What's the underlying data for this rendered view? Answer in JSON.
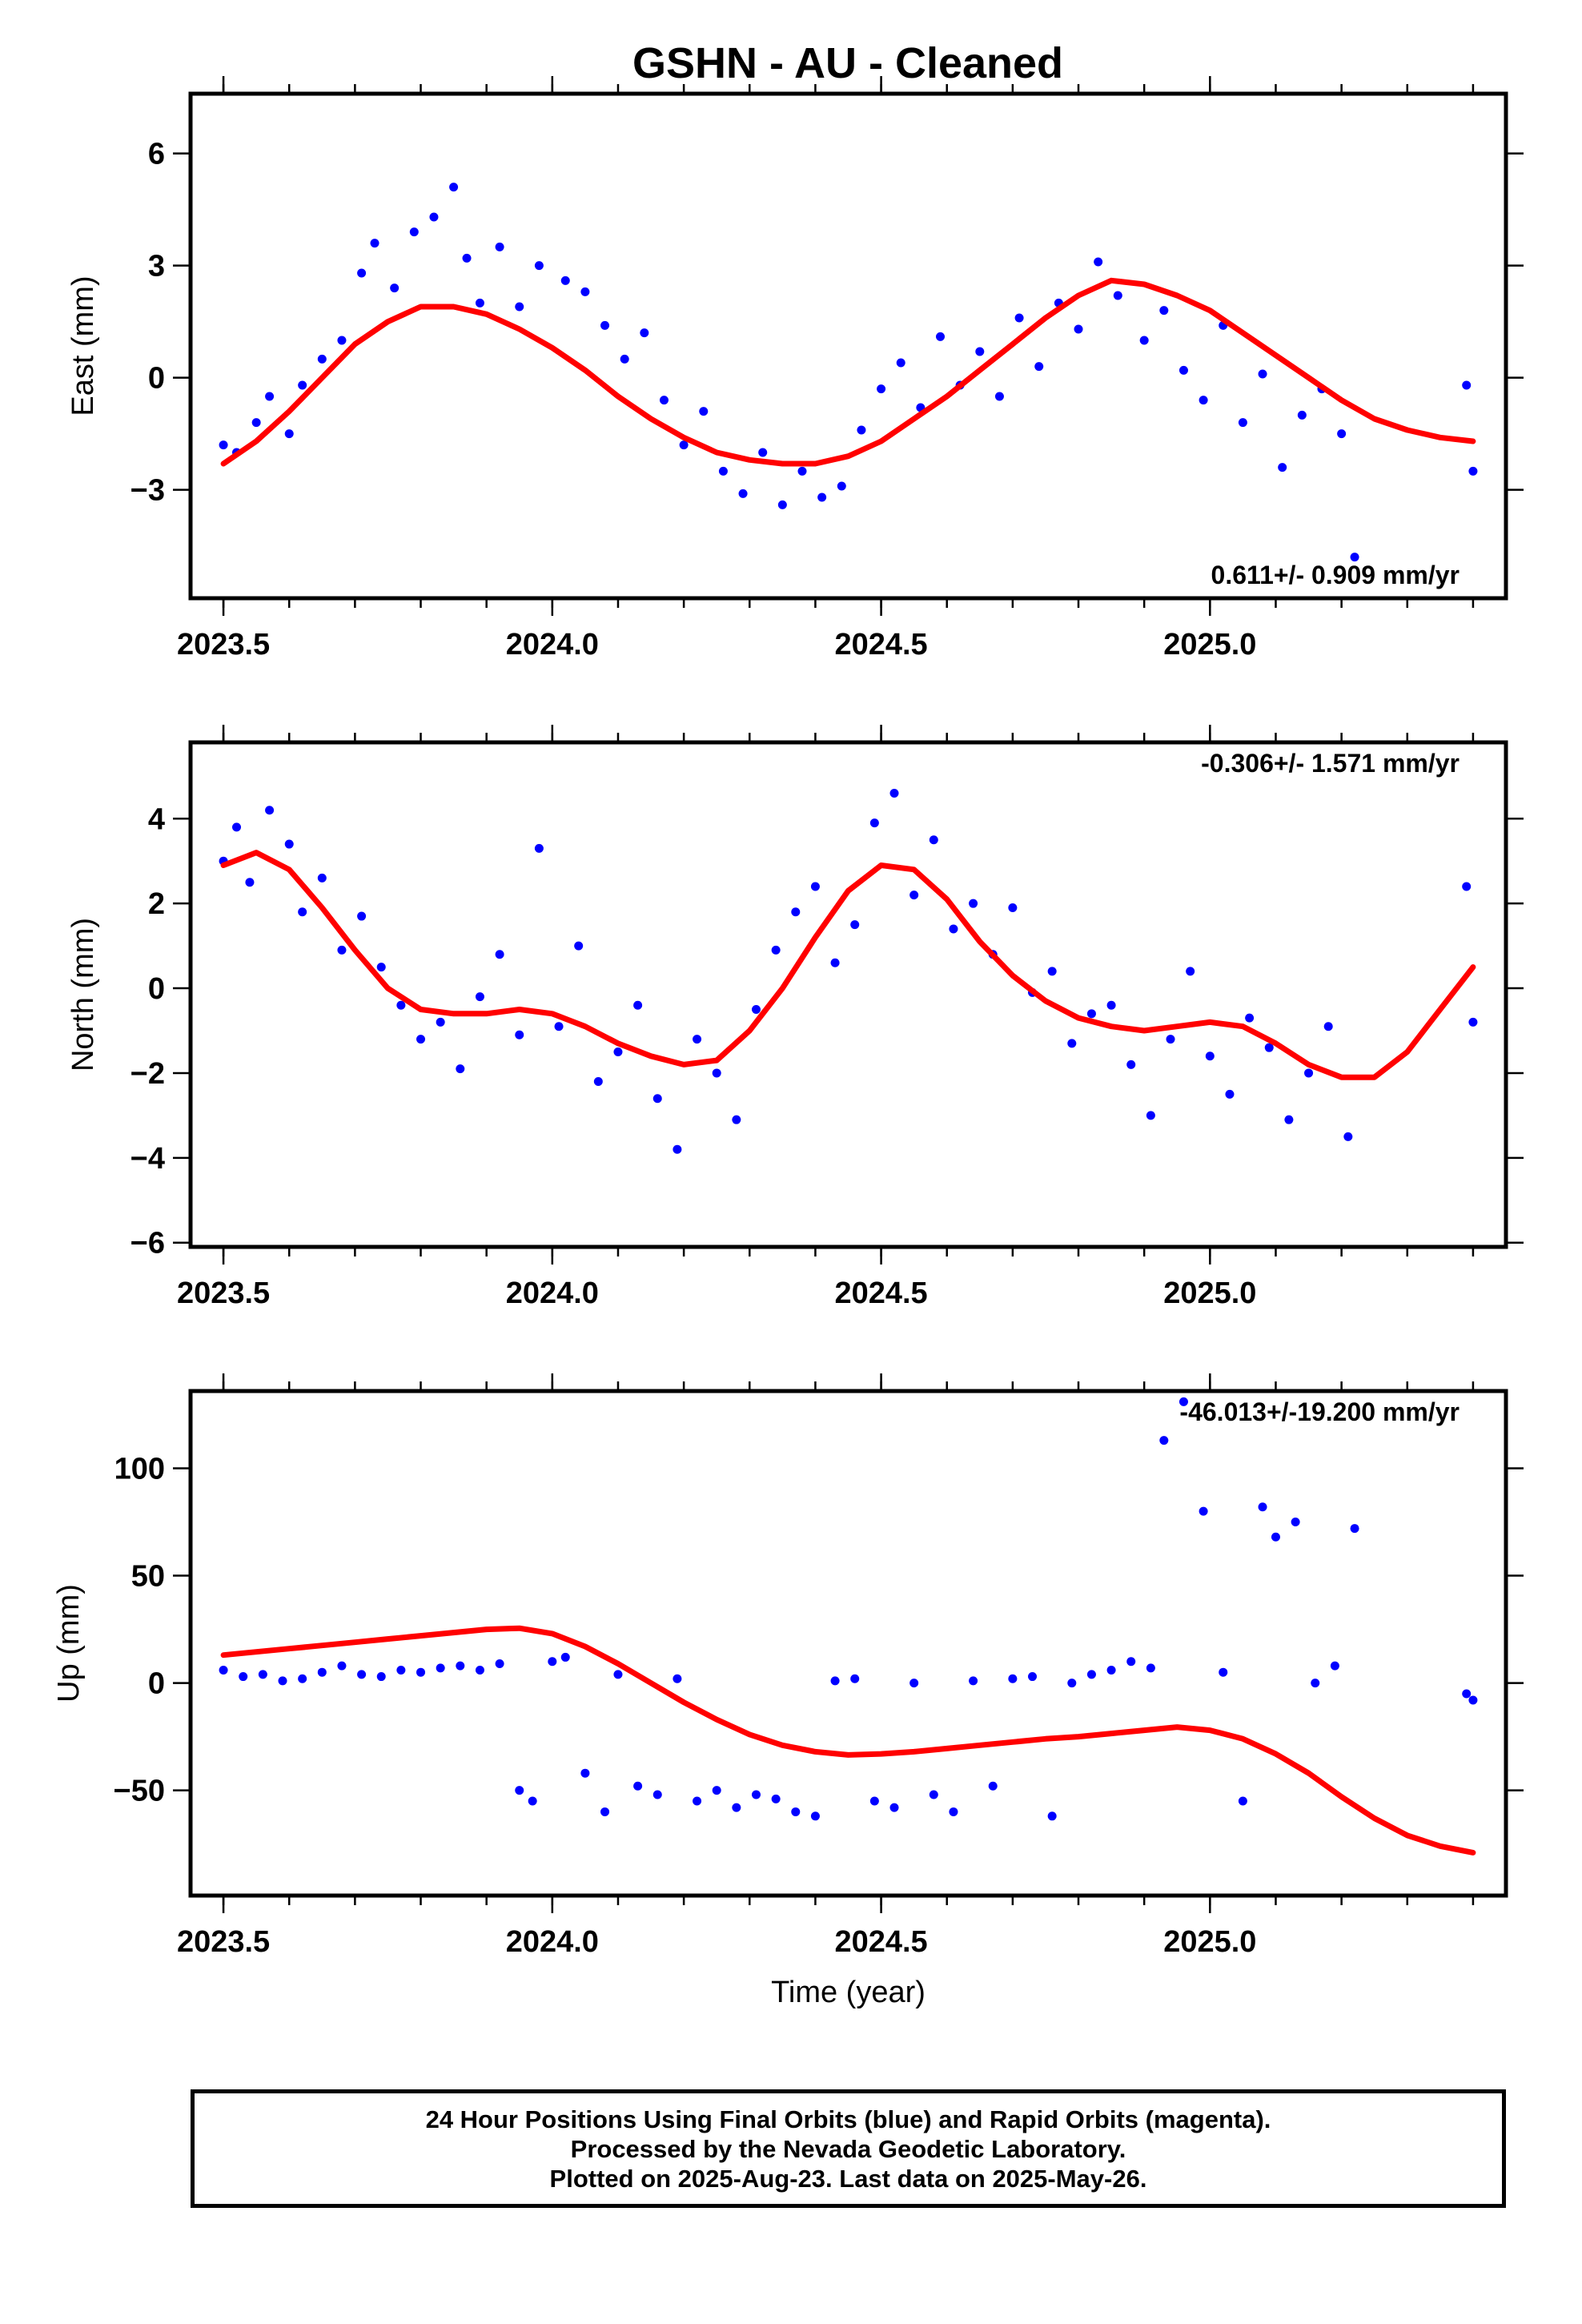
{
  "title": "GSHN  - AU - Cleaned",
  "footer": {
    "line1": "24 Hour Positions Using Final Orbits (blue) and Rapid Orbits (magenta).",
    "line2": "Processed by the Nevada Geodetic Laboratory.",
    "line3": "Plotted on 2025-Aug-23. Last data on 2025-May-26."
  },
  "colors": {
    "points": "#0000ff",
    "fit": "#ff0000",
    "axis": "#000000"
  },
  "chart_data": [
    {
      "type": "scatter",
      "ylabel": "East (mm)",
      "xlabel": "",
      "xlim": [
        2023.45,
        2025.45
      ],
      "ylim": [
        -5.9,
        7.6
      ],
      "xticks": [
        2023.5,
        2024.0,
        2024.5,
        2025.0
      ],
      "xtick_labels": [
        "2023.5",
        "2024.0",
        "2024.5",
        "2025.0"
      ],
      "yticks": [
        -3,
        0,
        3,
        6
      ],
      "ytick_labels": [
        "−3",
        "0",
        "3",
        "6"
      ],
      "rate_text": "0.611+/- 0.909 mm/yr",
      "rate_position": "bottom-right",
      "series": [
        {
          "type": "line",
          "x": [
            2023.5,
            2023.55,
            2023.6,
            2023.65,
            2023.7,
            2023.75,
            2023.8,
            2023.85,
            2023.9,
            2023.95,
            2024.0,
            2024.05,
            2024.1,
            2024.15,
            2024.2,
            2024.25,
            2024.3,
            2024.35,
            2024.4,
            2024.45,
            2024.5,
            2024.55,
            2024.6,
            2024.65,
            2024.7,
            2024.75,
            2024.8,
            2024.85,
            2024.9,
            2024.95,
            2025.0,
            2025.05,
            2025.1,
            2025.15,
            2025.2,
            2025.25,
            2025.3,
            2025.35,
            2025.4
          ],
          "y": [
            -2.3,
            -1.7,
            -0.9,
            0.0,
            0.9,
            1.5,
            1.9,
            1.9,
            1.7,
            1.3,
            0.8,
            0.2,
            -0.5,
            -1.1,
            -1.6,
            -2.0,
            -2.2,
            -2.3,
            -2.3,
            -2.1,
            -1.7,
            -1.1,
            -0.5,
            0.2,
            0.9,
            1.6,
            2.2,
            2.6,
            2.5,
            2.2,
            1.8,
            1.2,
            0.6,
            0.0,
            -0.6,
            -1.1,
            -1.4,
            -1.6,
            -1.7
          ]
        },
        {
          "type": "scatter",
          "x": [
            2023.5,
            2023.52,
            2023.55,
            2023.57,
            2023.6,
            2023.62,
            2023.65,
            2023.68,
            2023.71,
            2023.73,
            2023.76,
            2023.79,
            2023.82,
            2023.85,
            2023.87,
            2023.89,
            2023.92,
            2023.95,
            2023.98,
            2024.02,
            2024.05,
            2024.08,
            2024.11,
            2024.14,
            2024.17,
            2024.2,
            2024.23,
            2024.26,
            2024.29,
            2024.32,
            2024.35,
            2024.38,
            2024.41,
            2024.44,
            2024.47,
            2024.5,
            2024.53,
            2024.56,
            2024.59,
            2024.62,
            2024.65,
            2024.68,
            2024.71,
            2024.74,
            2024.77,
            2024.8,
            2024.83,
            2024.86,
            2024.9,
            2024.93,
            2024.96,
            2024.99,
            2025.02,
            2025.05,
            2025.08,
            2025.11,
            2025.14,
            2025.17,
            2025.2,
            2025.22,
            2025.39,
            2025.4
          ],
          "y": [
            -1.8,
            -2.0,
            -1.2,
            -0.5,
            -1.5,
            -0.2,
            0.5,
            1.0,
            2.8,
            3.6,
            2.4,
            3.9,
            4.3,
            5.1,
            3.2,
            2.0,
            3.5,
            1.9,
            3.0,
            2.6,
            2.3,
            1.4,
            0.5,
            1.2,
            -0.6,
            -1.8,
            -0.9,
            -2.5,
            -3.1,
            -2.0,
            -3.4,
            -2.5,
            -3.2,
            -2.9,
            -1.4,
            -0.3,
            0.4,
            -0.8,
            1.1,
            -0.2,
            0.7,
            -0.5,
            1.6,
            0.3,
            2.0,
            1.3,
            3.1,
            2.2,
            1.0,
            1.8,
            0.2,
            -0.6,
            1.4,
            -1.2,
            0.1,
            -2.4,
            -1.0,
            -0.3,
            -1.5,
            -4.8,
            -0.2,
            -2.5
          ]
        }
      ]
    },
    {
      "type": "scatter",
      "ylabel": "North (mm)",
      "xlabel": "",
      "xlim": [
        2023.45,
        2025.45
      ],
      "ylim": [
        -6.1,
        5.8
      ],
      "xticks": [
        2023.5,
        2024.0,
        2024.5,
        2025.0
      ],
      "xtick_labels": [
        "2023.5",
        "2024.0",
        "2024.5",
        "2025.0"
      ],
      "yticks": [
        -6,
        -4,
        -2,
        0,
        2,
        4
      ],
      "ytick_labels": [
        "−6",
        "−4",
        "−2",
        "0",
        "2",
        "4"
      ],
      "rate_text": "-0.306+/- 1.571 mm/yr",
      "rate_position": "top-right",
      "series": [
        {
          "type": "line",
          "x": [
            2023.5,
            2023.55,
            2023.6,
            2023.65,
            2023.7,
            2023.75,
            2023.8,
            2023.85,
            2023.9,
            2023.95,
            2024.0,
            2024.05,
            2024.1,
            2024.15,
            2024.2,
            2024.25,
            2024.3,
            2024.35,
            2024.4,
            2024.45,
            2024.5,
            2024.55,
            2024.6,
            2024.65,
            2024.7,
            2024.75,
            2024.8,
            2024.85,
            2024.9,
            2024.95,
            2025.0,
            2025.05,
            2025.1,
            2025.15,
            2025.2,
            2025.25,
            2025.3,
            2025.35,
            2025.4
          ],
          "y": [
            2.9,
            3.2,
            2.8,
            1.9,
            0.9,
            0.0,
            -0.5,
            -0.6,
            -0.6,
            -0.5,
            -0.6,
            -0.9,
            -1.3,
            -1.6,
            -1.8,
            -1.7,
            -1.0,
            0.0,
            1.2,
            2.3,
            2.9,
            2.8,
            2.1,
            1.1,
            0.3,
            -0.3,
            -0.7,
            -0.9,
            -1.0,
            -0.9,
            -0.8,
            -0.9,
            -1.3,
            -1.8,
            -2.1,
            -2.1,
            -1.5,
            -0.5,
            0.5
          ]
        },
        {
          "type": "scatter",
          "x": [
            2023.5,
            2023.52,
            2023.54,
            2023.57,
            2023.6,
            2023.62,
            2023.65,
            2023.68,
            2023.71,
            2023.74,
            2023.77,
            2023.8,
            2023.83,
            2023.86,
            2023.89,
            2023.92,
            2023.95,
            2023.98,
            2024.01,
            2024.04,
            2024.07,
            2024.1,
            2024.13,
            2024.16,
            2024.19,
            2024.22,
            2024.25,
            2024.28,
            2024.31,
            2024.34,
            2024.37,
            2024.4,
            2024.43,
            2024.46,
            2024.49,
            2024.52,
            2024.55,
            2024.58,
            2024.61,
            2024.64,
            2024.67,
            2024.7,
            2024.73,
            2024.76,
            2024.79,
            2024.82,
            2024.85,
            2024.88,
            2024.91,
            2024.94,
            2024.97,
            2025.0,
            2025.03,
            2025.06,
            2025.09,
            2025.12,
            2025.15,
            2025.18,
            2025.21,
            2025.39,
            2025.4
          ],
          "y": [
            3.0,
            3.8,
            2.5,
            4.2,
            3.4,
            1.8,
            2.6,
            0.9,
            1.7,
            0.5,
            -0.4,
            -1.2,
            -0.8,
            -1.9,
            -0.2,
            0.8,
            -1.1,
            3.3,
            -0.9,
            1.0,
            -2.2,
            -1.5,
            -0.4,
            -2.6,
            -3.8,
            -1.2,
            -2.0,
            -3.1,
            -0.5,
            0.9,
            1.8,
            2.4,
            0.6,
            1.5,
            3.9,
            4.6,
            2.2,
            3.5,
            1.4,
            2.0,
            0.8,
            1.9,
            -0.1,
            0.4,
            -1.3,
            -0.6,
            -0.4,
            -1.8,
            -3.0,
            -1.2,
            0.4,
            -1.6,
            -2.5,
            -0.7,
            -1.4,
            -3.1,
            -2.0,
            -0.9,
            -3.5,
            2.4,
            -0.8
          ]
        }
      ]
    },
    {
      "type": "scatter",
      "ylabel": "Up (mm)",
      "xlabel": "Time (year)",
      "xlim": [
        2023.45,
        2025.45
      ],
      "ylim": [
        -99,
        136
      ],
      "xticks": [
        2023.5,
        2024.0,
        2024.5,
        2025.0
      ],
      "xtick_labels": [
        "2023.5",
        "2024.0",
        "2024.5",
        "2025.0"
      ],
      "yticks": [
        -50,
        0,
        50,
        100
      ],
      "ytick_labels": [
        "−50",
        "0",
        "50",
        "100"
      ],
      "rate_text": "-46.013+/-19.200 mm/yr",
      "rate_position": "top-right",
      "series": [
        {
          "type": "line",
          "x": [
            2023.5,
            2023.55,
            2023.6,
            2023.65,
            2023.7,
            2023.75,
            2023.8,
            2023.85,
            2023.9,
            2023.95,
            2024.0,
            2024.05,
            2024.1,
            2024.15,
            2024.2,
            2024.25,
            2024.3,
            2024.35,
            2024.4,
            2024.45,
            2024.5,
            2024.55,
            2024.6,
            2024.65,
            2024.7,
            2024.75,
            2024.8,
            2024.85,
            2024.9,
            2024.95,
            2025.0,
            2025.05,
            2025.1,
            2025.15,
            2025.2,
            2025.25,
            2025.3,
            2025.35,
            2025.4
          ],
          "y": [
            13,
            14.5,
            16,
            17.5,
            19,
            20.5,
            22,
            23.5,
            25,
            25.5,
            23,
            17,
            9,
            0,
            -9,
            -17,
            -24,
            -29,
            -32,
            -33.5,
            -33,
            -32,
            -30.5,
            -29,
            -27.5,
            -26,
            -25,
            -23.5,
            -22,
            -20.5,
            -22,
            -26,
            -33,
            -42,
            -53,
            -63,
            -71,
            -76,
            -79
          ]
        },
        {
          "type": "scatter",
          "x": [
            2023.5,
            2023.53,
            2023.56,
            2023.59,
            2023.62,
            2023.65,
            2023.68,
            2023.71,
            2023.74,
            2023.77,
            2023.8,
            2023.83,
            2023.86,
            2023.89,
            2023.92,
            2023.95,
            2023.97,
            2024.0,
            2024.02,
            2024.05,
            2024.08,
            2024.1,
            2024.13,
            2024.16,
            2024.19,
            2024.22,
            2024.25,
            2024.28,
            2024.31,
            2024.34,
            2024.37,
            2024.4,
            2024.43,
            2024.46,
            2024.49,
            2024.52,
            2024.55,
            2024.58,
            2024.61,
            2024.64,
            2024.67,
            2024.7,
            2024.73,
            2024.76,
            2024.79,
            2024.82,
            2024.85,
            2024.88,
            2024.91,
            2024.93,
            2024.96,
            2024.99,
            2025.02,
            2025.05,
            2025.08,
            2025.1,
            2025.13,
            2025.16,
            2025.19,
            2025.22,
            2025.39,
            2025.4
          ],
          "y": [
            6,
            3,
            4,
            1,
            2,
            5,
            8,
            4,
            3,
            6,
            5,
            7,
            8,
            6,
            9,
            -50,
            -55,
            10,
            12,
            -42,
            -60,
            4,
            -48,
            -52,
            2,
            -55,
            -50,
            -58,
            -52,
            -54,
            -60,
            -62,
            1,
            2,
            -55,
            -58,
            0,
            -52,
            -60,
            1,
            -48,
            2,
            3,
            -62,
            0,
            4,
            6,
            10,
            7,
            113,
            131,
            80,
            5,
            -55,
            82,
            68,
            75,
            0,
            8,
            72,
            -5,
            -8
          ]
        }
      ]
    }
  ]
}
